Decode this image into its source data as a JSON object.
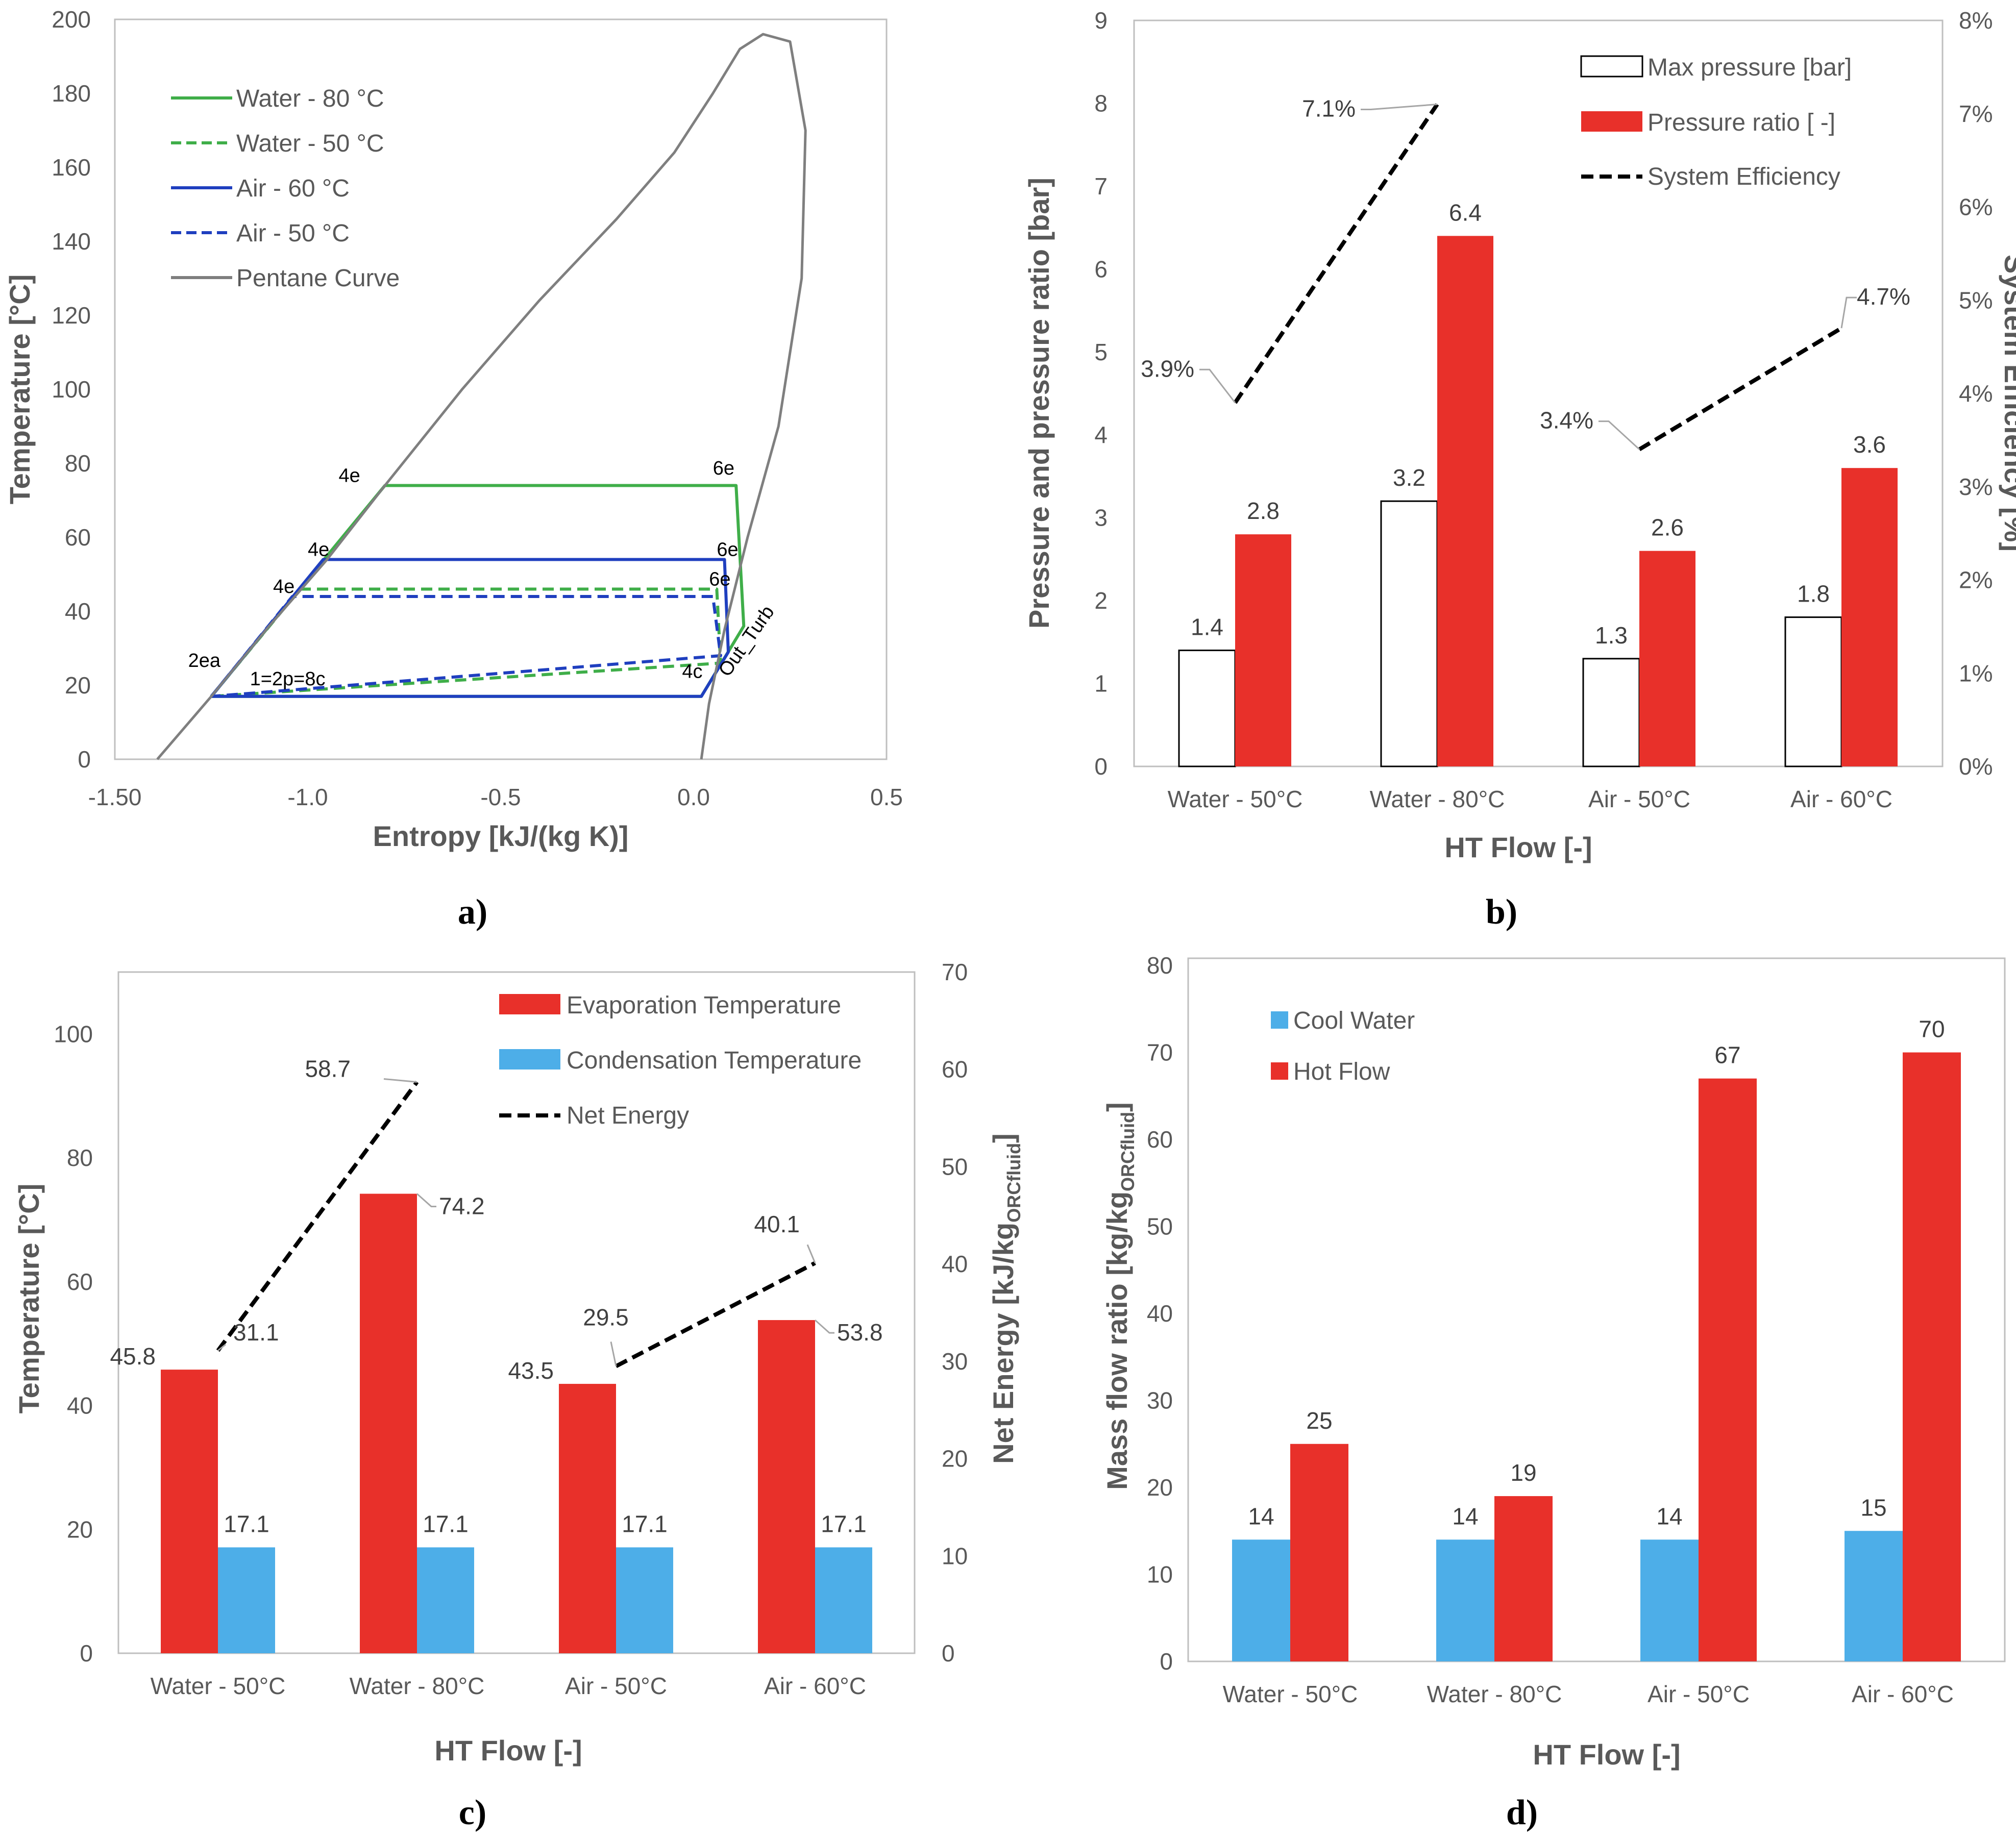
{
  "colors": {
    "red": "#e8302a",
    "blue": "#4daee8",
    "green": "#3fae49",
    "navy": "#1f3fbf",
    "gray": "#7f7f7f",
    "black": "#000000",
    "white": "#ffffff"
  },
  "chart_data": [
    {
      "id": "a",
      "panel_label": "a)",
      "type": "line",
      "xlabel": "Entropy [kJ/(kg K)]",
      "ylabel": "Temperature [°C]",
      "xlim": [
        -1.5,
        0.5
      ],
      "ylim": [
        0,
        200
      ],
      "xticks": [
        -1.5,
        -1.0,
        -0.5,
        0.0,
        0.5
      ],
      "xtick_labels": [
        "-1.50",
        "-1.0",
        "-0.5",
        "0.0",
        "0.5"
      ],
      "yticks": [
        0,
        20,
        40,
        60,
        80,
        100,
        120,
        140,
        160,
        180,
        200
      ],
      "legend_position": "top-left",
      "series": [
        {
          "name": "Water - 80 °C",
          "color": "green",
          "dash": "solid",
          "x": [
            -1.25,
            -0.8,
            0.11,
            0.13,
            0.02,
            -1.25
          ],
          "y": [
            17,
            74,
            74,
            36,
            17,
            17
          ]
        },
        {
          "name": "Water - 50 °C",
          "color": "green",
          "dash": "dashed",
          "x": [
            -1.25,
            -1.02,
            0.06,
            0.07,
            -1.25
          ],
          "y": [
            17,
            46,
            46,
            26,
            17
          ]
        },
        {
          "name": "Air - 60 °C",
          "color": "navy",
          "dash": "solid",
          "x": [
            -1.25,
            -0.96,
            0.08,
            0.09,
            0.02,
            -1.25
          ],
          "y": [
            17,
            54,
            54,
            29,
            17,
            17
          ]
        },
        {
          "name": "Air - 50 °C",
          "color": "navy",
          "dash": "dashed",
          "x": [
            -1.25,
            -1.04,
            0.05,
            0.07,
            -1.25
          ],
          "y": [
            17,
            44,
            44,
            28,
            17
          ]
        },
        {
          "name": "Pentane Curve",
          "color": "gray",
          "dash": "solid",
          "x": [
            -1.39,
            -1.25,
            -1.1,
            -0.95,
            -0.8,
            -0.6,
            -0.4,
            -0.2,
            -0.05,
            0.05,
            0.12,
            0.18,
            0.25,
            0.29,
            0.28,
            0.22,
            0.14,
            0.08,
            0.04,
            0.02
          ],
          "y": [
            0,
            17,
            36,
            54,
            74,
            100,
            124,
            146,
            164,
            180,
            192,
            196,
            194,
            170,
            130,
            90,
            60,
            35,
            15,
            0
          ]
        }
      ],
      "point_labels": [
        {
          "text": "4e",
          "x": -0.92,
          "y": 75
        },
        {
          "text": "6e",
          "x": 0.05,
          "y": 77
        },
        {
          "text": "4e",
          "x": -1.0,
          "y": 55
        },
        {
          "text": "6e",
          "x": 0.06,
          "y": 55
        },
        {
          "text": "6e",
          "x": 0.04,
          "y": 47
        },
        {
          "text": "4e",
          "x": -1.09,
          "y": 45
        },
        {
          "text": "2ea",
          "x": -1.31,
          "y": 25
        },
        {
          "text": "1=2p=8c",
          "x": -1.15,
          "y": 20
        },
        {
          "text": "4c",
          "x": -0.03,
          "y": 22
        },
        {
          "text": "Out_Turb",
          "x": 0.09,
          "y": 22
        }
      ]
    },
    {
      "id": "b",
      "panel_label": "b)",
      "type": "bar",
      "xlabel": "HT Flow [-]",
      "ylabel": "Pressure and pressure ratio [bar]",
      "y2label": "System Efficiency [%]",
      "categories": [
        "Water - 50°C",
        "Water - 80°C",
        "Air - 50°C",
        "Air - 60°C"
      ],
      "ylim": [
        0,
        9
      ],
      "yticks": [
        0,
        1,
        2,
        3,
        4,
        5,
        6,
        7,
        8,
        9
      ],
      "y2lim": [
        0,
        8
      ],
      "y2ticks": [
        0,
        1,
        2,
        3,
        4,
        5,
        6,
        7,
        8
      ],
      "y2tick_labels": [
        "0%",
        "1%",
        "2%",
        "3%",
        "4%",
        "5%",
        "6%",
        "7%",
        "8%"
      ],
      "legend_position": "top-right",
      "series": [
        {
          "name": "Max pressure [bar]",
          "color": "white",
          "values": [
            1.4,
            3.2,
            1.3,
            1.8
          ],
          "labels": [
            "1.4",
            "3.2",
            "1.3",
            "1.8"
          ]
        },
        {
          "name": "Pressure ratio [ -]",
          "color": "red",
          "values": [
            2.8,
            6.4,
            2.6,
            3.6
          ],
          "labels": [
            "2.8",
            "6.4",
            "2.6",
            "3.6"
          ]
        }
      ],
      "line_series": {
        "name": "System Efficiency",
        "axis": "y2",
        "segments": [
          {
            "categories": [
              0,
              1
            ],
            "values": [
              3.9,
              7.1
            ],
            "labels": [
              "3.9%",
              "7.1%"
            ]
          },
          {
            "categories": [
              2,
              3
            ],
            "values": [
              3.4,
              4.7
            ],
            "labels": [
              "3.4%",
              "4.7%"
            ]
          }
        ]
      }
    },
    {
      "id": "c",
      "panel_label": "c)",
      "type": "bar",
      "xlabel": "HT  Flow [-]",
      "ylabel": "Temperature [°C]",
      "y2label": "Net Energy [kJ/kg",
      "y2label_sub": "ORCfluid",
      "y2label_end": "]",
      "categories": [
        "Water - 50°C",
        "Water - 80°C",
        "Air - 50°C",
        "Air - 60°C"
      ],
      "ylim": [
        0,
        110
      ],
      "yticks": [
        0,
        20,
        40,
        60,
        80,
        100
      ],
      "y2lim": [
        0,
        70
      ],
      "y2ticks": [
        0,
        10,
        20,
        30,
        40,
        50,
        60,
        70
      ],
      "legend_position": "top-right",
      "series": [
        {
          "name": "Evaporation Temperature",
          "color": "red",
          "values": [
            45.8,
            74.2,
            43.5,
            53.8
          ],
          "labels": [
            "45.8",
            "74.2",
            "43.5",
            "53.8"
          ]
        },
        {
          "name": "Condensation Temperature",
          "color": "blue",
          "values": [
            17.1,
            17.1,
            17.1,
            17.1
          ],
          "labels": [
            "17.1",
            "17.1",
            "17.1",
            "17.1"
          ]
        }
      ],
      "line_series": {
        "name": "Net Energy",
        "axis": "y2",
        "segments": [
          {
            "categories": [
              0,
              1
            ],
            "values": [
              31.1,
              58.7
            ],
            "labels": [
              "31.1",
              "58.7"
            ]
          },
          {
            "categories": [
              2,
              3
            ],
            "values": [
              29.5,
              40.1
            ],
            "labels": [
              "29.5",
              "40.1"
            ]
          }
        ]
      }
    },
    {
      "id": "d",
      "panel_label": "d)",
      "type": "bar",
      "xlabel": "HT Flow [-]",
      "ylabel": "Mass flow ratio [kg/kg",
      "ylabel_sub": "ORCfluid",
      "ylabel_end": "]",
      "categories": [
        "Water - 50°C",
        "Water - 80°C",
        "Air - 50°C",
        "Air - 60°C"
      ],
      "ylim": [
        0,
        80
      ],
      "yticks": [
        0,
        10,
        20,
        30,
        40,
        50,
        60,
        70,
        80
      ],
      "legend_position": "top-left",
      "series": [
        {
          "name": "Cool Water",
          "color": "blue",
          "values": [
            14,
            14,
            14,
            15
          ],
          "labels": [
            "14",
            "14",
            "14",
            "15"
          ]
        },
        {
          "name": "Hot Flow",
          "color": "red",
          "values": [
            25,
            19,
            67,
            70
          ],
          "labels": [
            "25",
            "19",
            "67",
            "70"
          ]
        }
      ]
    }
  ]
}
